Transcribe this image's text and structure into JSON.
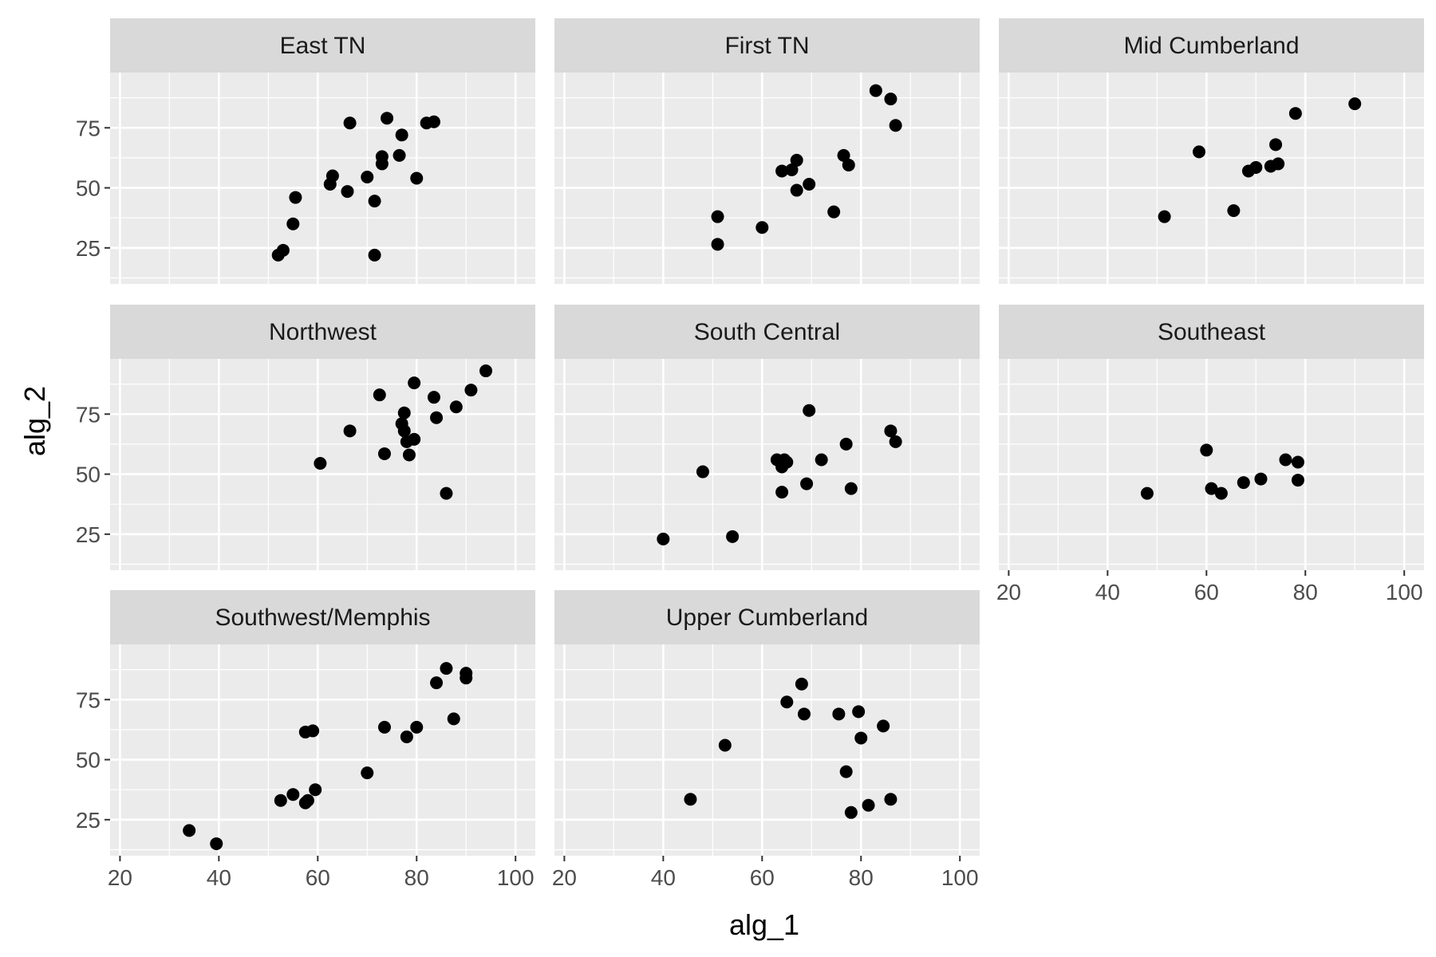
{
  "chart_data": {
    "type": "scatter",
    "xlabel": "alg_1",
    "ylabel": "alg_2",
    "xlim": [
      18,
      104
    ],
    "ylim": [
      10,
      98
    ],
    "x_ticks": [
      20,
      40,
      60,
      80,
      100
    ],
    "y_ticks": [
      25,
      50,
      75
    ],
    "grid": true,
    "colors": {
      "panel_bg": "#ebebeb",
      "strip_bg": "#d9d9d9",
      "grid": "#ffffff",
      "point": "#000000"
    },
    "panels": [
      {
        "name": "East TN",
        "points": [
          [
            52,
            22
          ],
          [
            53,
            24
          ],
          [
            55,
            35
          ],
          [
            55.5,
            46
          ],
          [
            62.5,
            51.5
          ],
          [
            63,
            55
          ],
          [
            66,
            48.5
          ],
          [
            66.5,
            77
          ],
          [
            70,
            54.5
          ],
          [
            71.5,
            22
          ],
          [
            71.5,
            44.5
          ],
          [
            73,
            60
          ],
          [
            73,
            63
          ],
          [
            74,
            79
          ],
          [
            76.5,
            63.5
          ],
          [
            77,
            72
          ],
          [
            80,
            54
          ],
          [
            82,
            77
          ],
          [
            83.5,
            77.5
          ]
        ]
      },
      {
        "name": "First TN",
        "points": [
          [
            51,
            26.5
          ],
          [
            51,
            38
          ],
          [
            60,
            33.5
          ],
          [
            64,
            57
          ],
          [
            66,
            57.5
          ],
          [
            67,
            49
          ],
          [
            67,
            61.5
          ],
          [
            69.5,
            51.5
          ],
          [
            74.5,
            40
          ],
          [
            76.5,
            63.5
          ],
          [
            77.5,
            59.5
          ],
          [
            83,
            90.5
          ],
          [
            86,
            87
          ],
          [
            87,
            76
          ]
        ]
      },
      {
        "name": "Mid Cumberland",
        "points": [
          [
            51.5,
            38
          ],
          [
            58.5,
            65
          ],
          [
            65.5,
            40.5
          ],
          [
            68.5,
            57
          ],
          [
            70,
            58.5
          ],
          [
            73,
            59
          ],
          [
            74,
            68
          ],
          [
            74.5,
            60
          ],
          [
            78,
            81
          ],
          [
            90,
            85
          ]
        ]
      },
      {
        "name": "Northwest",
        "points": [
          [
            60.5,
            54.5
          ],
          [
            66.5,
            68
          ],
          [
            72.5,
            83
          ],
          [
            73.5,
            58.5
          ],
          [
            77,
            71
          ],
          [
            77.5,
            75.5
          ],
          [
            77.5,
            68
          ],
          [
            78,
            63.5
          ],
          [
            78.5,
            58
          ],
          [
            79.5,
            64.5
          ],
          [
            79.5,
            88
          ],
          [
            83.5,
            82
          ],
          [
            84,
            73.5
          ],
          [
            86,
            42
          ],
          [
            88,
            78
          ],
          [
            91,
            85
          ],
          [
            94,
            93
          ]
        ]
      },
      {
        "name": "South Central",
        "points": [
          [
            40,
            23
          ],
          [
            48,
            51
          ],
          [
            54,
            24
          ],
          [
            63,
            56
          ],
          [
            64,
            42.5
          ],
          [
            64,
            53
          ],
          [
            64.5,
            56
          ],
          [
            65,
            55
          ],
          [
            69,
            46
          ],
          [
            69.5,
            76.5
          ],
          [
            72,
            56
          ],
          [
            77,
            62.5
          ],
          [
            78,
            44
          ],
          [
            86,
            68
          ],
          [
            87,
            63.5
          ]
        ]
      },
      {
        "name": "Southeast",
        "points": [
          [
            48,
            42
          ],
          [
            60,
            60
          ],
          [
            61,
            44
          ],
          [
            63,
            42
          ],
          [
            67.5,
            46.5
          ],
          [
            71,
            48
          ],
          [
            76,
            56
          ],
          [
            78.5,
            55
          ],
          [
            78.5,
            47.5
          ]
        ]
      },
      {
        "name": "Southwest/Memphis",
        "points": [
          [
            34,
            20.5
          ],
          [
            39.5,
            15
          ],
          [
            52.5,
            33
          ],
          [
            55,
            35.5
          ],
          [
            57.5,
            32
          ],
          [
            57.5,
            61.5
          ],
          [
            58,
            33
          ],
          [
            59,
            62
          ],
          [
            59.5,
            37.5
          ],
          [
            70,
            44.5
          ],
          [
            73.5,
            63.5
          ],
          [
            78,
            59.5
          ],
          [
            80,
            63.5
          ],
          [
            84,
            82
          ],
          [
            86,
            88
          ],
          [
            87.5,
            67
          ],
          [
            90,
            84
          ],
          [
            90,
            86
          ]
        ]
      },
      {
        "name": "Upper Cumberland",
        "points": [
          [
            45.5,
            33.5
          ],
          [
            52.5,
            56
          ],
          [
            65,
            74
          ],
          [
            68,
            81.5
          ],
          [
            68.5,
            69
          ],
          [
            75.5,
            69
          ],
          [
            77,
            45
          ],
          [
            78,
            28
          ],
          [
            79.5,
            70
          ],
          [
            80,
            59
          ],
          [
            81.5,
            31
          ],
          [
            84.5,
            64
          ],
          [
            86,
            33.5
          ]
        ]
      }
    ]
  }
}
